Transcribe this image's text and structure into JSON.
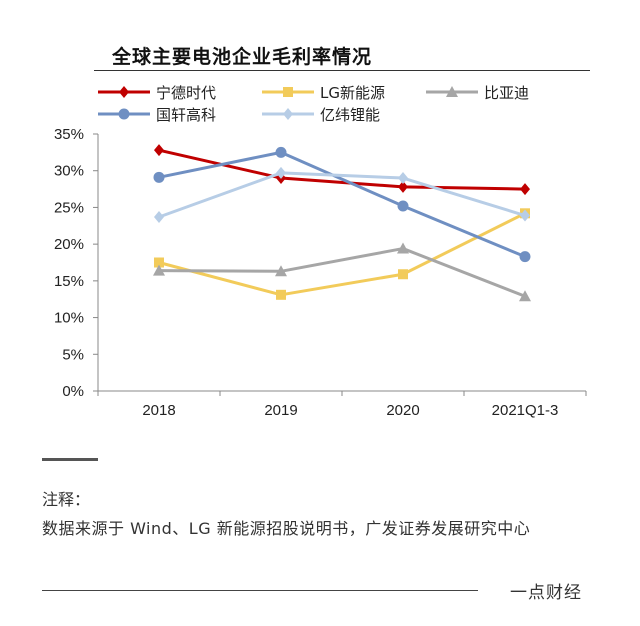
{
  "title": "全球主要电池企业毛利率情况",
  "note": {
    "label": "注释：",
    "text": "数据来源于 Wind、LG 新能源招股说明书，广发证券发展研究中心"
  },
  "brand": "一点财经",
  "chart_data": {
    "type": "line",
    "title": "全球主要电池企业毛利率情况",
    "categories": [
      "2018",
      "2019",
      "2020",
      "2021Q1-3"
    ],
    "y_ticks": [
      "0%",
      "5%",
      "10%",
      "15%",
      "20%",
      "25%",
      "30%",
      "35%"
    ],
    "ylim": [
      0,
      35
    ],
    "ylabel": "",
    "xlabel": "",
    "legend_position": "top",
    "series": [
      {
        "name": "宁德时代",
        "color": "#C00000",
        "marker": "diamond",
        "values": [
          32.8,
          29.0,
          27.8,
          27.5
        ]
      },
      {
        "name": "LG新能源",
        "color": "#F2CB5A",
        "marker": "square",
        "values": [
          17.5,
          13.1,
          15.9,
          24.2
        ]
      },
      {
        "name": "比亚迪",
        "color": "#A6A6A6",
        "marker": "triangle",
        "values": [
          16.4,
          16.3,
          19.4,
          12.9
        ]
      },
      {
        "name": "国轩高科",
        "color": "#6F8FC2",
        "marker": "circle",
        "values": [
          29.1,
          32.5,
          25.2,
          18.3
        ]
      },
      {
        "name": "亿纬锂能",
        "color": "#B7CDE6",
        "marker": "diamond",
        "values": [
          23.7,
          29.7,
          29.0,
          23.9
        ]
      }
    ]
  }
}
